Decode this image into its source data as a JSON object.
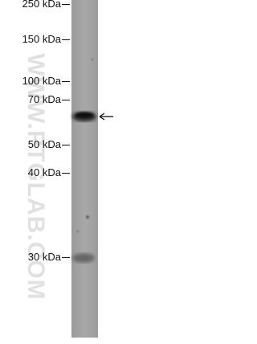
{
  "markers": [
    {
      "label": "250 kDa"
    },
    {
      "label": "150 kDa"
    },
    {
      "label": "100 kDa"
    },
    {
      "label": "70 kDa"
    },
    {
      "label": "50 kDa"
    },
    {
      "label": "40 kDa"
    },
    {
      "label": "30 kDa"
    }
  ],
  "watermark": "WWW.PTGLAB.COM"
}
